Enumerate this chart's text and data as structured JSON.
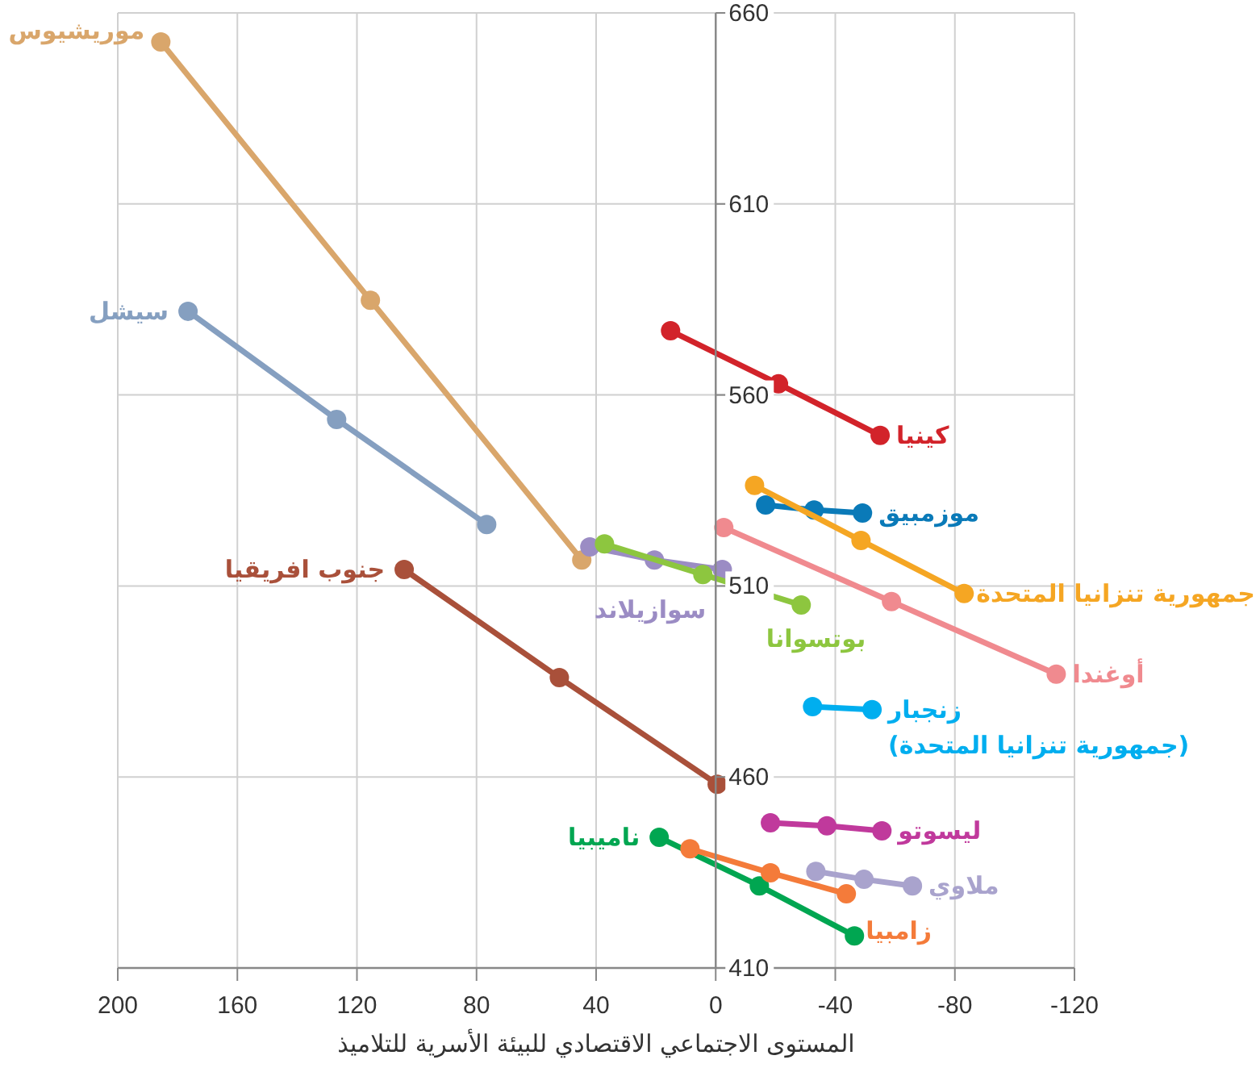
{
  "chart_data": {
    "type": "line",
    "xlabel": "المستوى الاجتماعي الاقتصادي للبيئة الأسرية للتلاميذ",
    "xlim": [
      200,
      -120
    ],
    "xticks": [
      200,
      160,
      120,
      80,
      40,
      0,
      -40,
      -80,
      -120
    ],
    "ylim": [
      410,
      660
    ],
    "yticks": [
      410,
      460,
      510,
      560,
      610,
      660
    ],
    "grid": true,
    "marker": "circle",
    "line_style": "solid",
    "series": [
      {
        "name": "موريشيوس",
        "color": "#d9a66b",
        "x": [
          185.6,
          115.5,
          44.8
        ],
        "values": [
          652.4,
          584.8,
          516.8
        ]
      },
      {
        "name": "سيشل",
        "color": "#859fc0",
        "x": [
          176.5,
          126.8,
          76.6
        ],
        "values": [
          581.9,
          553.6,
          526.1
        ]
      },
      {
        "name": "جنوب افريقيا",
        "color": "#a9503a",
        "x": [
          104.2,
          52.3,
          -0.5
        ],
        "values": [
          514.3,
          486,
          458.1
        ]
      },
      {
        "name": "سوازيلاند",
        "color": "#9b8cc4",
        "x": [
          42.1,
          20.5,
          -2.2
        ],
        "values": [
          520.2,
          516.8,
          514.3
        ]
      },
      {
        "name": "بوتسوانا",
        "color": "#8dc63f",
        "x": [
          37.2,
          4.3,
          -28.6
        ],
        "values": [
          521,
          513,
          505
        ]
      },
      {
        "name": "كينيا",
        "color": "#d2232a",
        "x": [
          15.1,
          -21,
          -55
        ],
        "values": [
          576.8,
          562.9,
          549.4
        ]
      },
      {
        "name": "موزمبيق",
        "color": "#0a7ab8",
        "x": [
          -16.7,
          -32.9,
          -49.1
        ],
        "values": [
          531.2,
          529.9,
          529.1
        ]
      },
      {
        "name": "جمهورية تنزانيا المتحدة",
        "color": "#f5a623",
        "x": [
          -13,
          -48.6,
          -83.1
        ],
        "values": [
          536.3,
          521.9,
          508
        ]
      },
      {
        "name": "أوغندا",
        "color": "#f08a8f",
        "x": [
          -2.7,
          -58.8,
          -113.9
        ],
        "values": [
          525.3,
          505.9,
          486.9
        ]
      },
      {
        "name": "زنجبار\n(جمهورية تنزانيا المتحدة)",
        "color": "#00aeef",
        "x": [
          -32.4,
          -52.3
        ],
        "values": [
          478.4,
          477.6
        ]
      },
      {
        "name": "ليسوتو",
        "color": "#c0399c",
        "x": [
          -18.3,
          -37.2,
          -55.6
        ],
        "values": [
          448,
          447.2,
          445.9
        ]
      },
      {
        "name": "ملاوي",
        "color": "#a9a3cd",
        "x": [
          -33.5,
          -49.6,
          -65.8
        ],
        "values": [
          435.3,
          433.2,
          431.5
        ]
      },
      {
        "name": "ناميبيا",
        "color": "#00a651",
        "x": [
          18.9,
          -14.6,
          -46.4
        ],
        "values": [
          444.2,
          431.5,
          418.4
        ]
      },
      {
        "name": "زامبيا",
        "color": "#f47b3a",
        "x": [
          8.6,
          -18.3,
          -43.7
        ],
        "values": [
          441.2,
          434.9,
          429.4
        ]
      }
    ]
  }
}
